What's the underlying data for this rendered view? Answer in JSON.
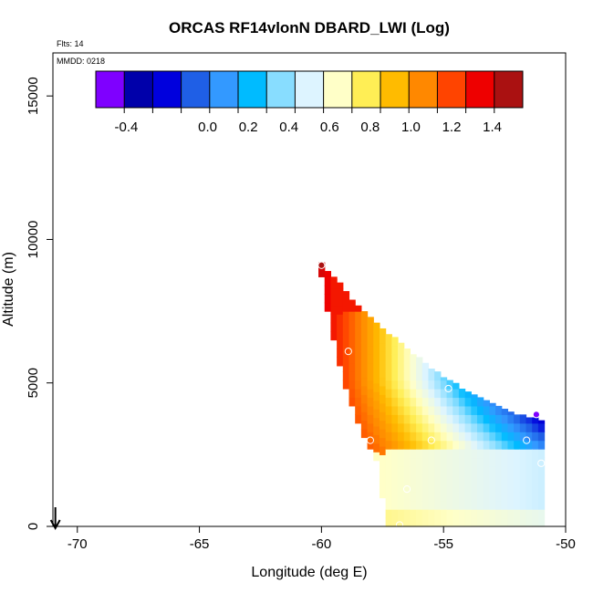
{
  "chart_data": {
    "type": "heatmap",
    "title": "ORCAS RF14vlonN DBARD_LWI (Log)",
    "note_flights": "Flts: 14",
    "note_mmdd": "MMDD: 0218",
    "xlabel": "Longitude (deg E)",
    "ylabel": "Altitude (m)",
    "xlim": [
      -71,
      -50
    ],
    "ylim": [
      0,
      16500
    ],
    "x_ticks": [
      -70,
      -65,
      -60,
      -55,
      -50
    ],
    "x_tick_labels": [
      "-70",
      "-65",
      "-60",
      "-55",
      "-50"
    ],
    "y_ticks": [
      0,
      5000,
      10000,
      15000
    ],
    "y_tick_labels": [
      "0",
      "5000",
      "10000",
      "15000"
    ],
    "colorbar": {
      "min": -0.55,
      "max": 1.55,
      "colors": [
        "#7f00ff",
        "#0000aa",
        "#0000dd",
        "#1f5fe6",
        "#3399ff",
        "#00bbff",
        "#88ddff",
        "#ddf4ff",
        "#ffffc8",
        "#ffee55",
        "#ffbb00",
        "#ff8800",
        "#ff4400",
        "#ee0000",
        "#aa1111"
      ],
      "tick_values": [
        -0.4,
        0.0,
        0.2,
        0.4,
        0.6,
        0.8,
        1.0,
        1.2,
        1.4
      ],
      "tick_labels": [
        "-0.4",
        "0.0",
        "0.2",
        "0.4",
        "0.6",
        "0.8",
        "1.0",
        "1.2",
        "1.4"
      ]
    },
    "arrow_longitude": -70.9,
    "cell_size": {
      "dlon": 0.25,
      "dalt": 300
    },
    "field_description": "value decreasing from west (~1.45) to east (~-0.4) at mid altitudes, near 0.6 in lower layers",
    "columns": [
      {
        "lon": -60.0,
        "alt_min": 8700,
        "alt_max": 9200
      },
      {
        "lon": -59.75,
        "alt_min": 7500,
        "alt_max": 8900
      },
      {
        "lon": -59.5,
        "alt_min": 6500,
        "alt_max": 8700
      },
      {
        "lon": -59.25,
        "alt_min": 5600,
        "alt_max": 8500
      },
      {
        "lon": -59.0,
        "alt_min": 4800,
        "alt_max": 8200
      },
      {
        "lon": -58.75,
        "alt_min": 4200,
        "alt_max": 7900
      },
      {
        "lon": -58.5,
        "alt_min": 3600,
        "alt_max": 7700
      },
      {
        "lon": -58.25,
        "alt_min": 3100,
        "alt_max": 7500
      },
      {
        "lon": -58.0,
        "alt_min": 2700,
        "alt_max": 7300
      },
      {
        "lon": -57.75,
        "alt_min": 2300,
        "alt_max": 7100
      },
      {
        "lon": -57.5,
        "alt_min": 1000,
        "alt_max": 6900
      },
      {
        "lon": -57.25,
        "alt_min": 0,
        "alt_max": 6700
      },
      {
        "lon": -57.0,
        "alt_min": 0,
        "alt_max": 6600
      },
      {
        "lon": -56.75,
        "alt_min": 0,
        "alt_max": 6400
      },
      {
        "lon": -56.5,
        "alt_min": 0,
        "alt_max": 6200
      },
      {
        "lon": -56.25,
        "alt_min": 0,
        "alt_max": 6000
      },
      {
        "lon": -56.0,
        "alt_min": 0,
        "alt_max": 5900
      },
      {
        "lon": -55.75,
        "alt_min": 0,
        "alt_max": 5700
      },
      {
        "lon": -55.5,
        "alt_min": 0,
        "alt_max": 5500
      },
      {
        "lon": -55.25,
        "alt_min": 0,
        "alt_max": 5400
      },
      {
        "lon": -55.0,
        "alt_min": 0,
        "alt_max": 5200
      },
      {
        "lon": -54.75,
        "alt_min": 0,
        "alt_max": 5100
      },
      {
        "lon": -54.5,
        "alt_min": 0,
        "alt_max": 5000
      },
      {
        "lon": -54.25,
        "alt_min": 0,
        "alt_max": 4800
      },
      {
        "lon": -54.0,
        "alt_min": 0,
        "alt_max": 4700
      },
      {
        "lon": -53.75,
        "alt_min": 0,
        "alt_max": 4600
      },
      {
        "lon": -53.5,
        "alt_min": 0,
        "alt_max": 4500
      },
      {
        "lon": -53.25,
        "alt_min": 0,
        "alt_max": 4400
      },
      {
        "lon": -53.0,
        "alt_min": 0,
        "alt_max": 4300
      },
      {
        "lon": -52.75,
        "alt_min": 0,
        "alt_max": 4200
      },
      {
        "lon": -52.5,
        "alt_min": 0,
        "alt_max": 4100
      },
      {
        "lon": -52.25,
        "alt_min": 0,
        "alt_max": 4000
      },
      {
        "lon": -52.0,
        "alt_min": 0,
        "alt_max": 3900
      },
      {
        "lon": -51.75,
        "alt_min": 0,
        "alt_max": 3900
      },
      {
        "lon": -51.5,
        "alt_min": 0,
        "alt_max": 3800
      },
      {
        "lon": -51.25,
        "alt_min": 0,
        "alt_max": 3800
      },
      {
        "lon": -51.0,
        "alt_min": 0,
        "alt_max": 3700
      }
    ],
    "markers": [
      {
        "lon": -60.0,
        "alt": 9100,
        "fill": "#aa1111"
      },
      {
        "lon": -58.9,
        "alt": 6100,
        "fill": "none"
      },
      {
        "lon": -58.0,
        "alt": 3000,
        "fill": "none"
      },
      {
        "lon": -55.5,
        "alt": 3000,
        "fill": "none"
      },
      {
        "lon": -54.8,
        "alt": 4800,
        "fill": "none"
      },
      {
        "lon": -56.5,
        "alt": 1300,
        "fill": "none"
      },
      {
        "lon": -51.6,
        "alt": 3000,
        "fill": "none"
      },
      {
        "lon": -51.2,
        "alt": 3900,
        "fill": "#7f00ff"
      },
      {
        "lon": -51.0,
        "alt": 2200,
        "fill": "none"
      },
      {
        "lon": -56.8,
        "alt": 50,
        "fill": "none"
      }
    ]
  }
}
